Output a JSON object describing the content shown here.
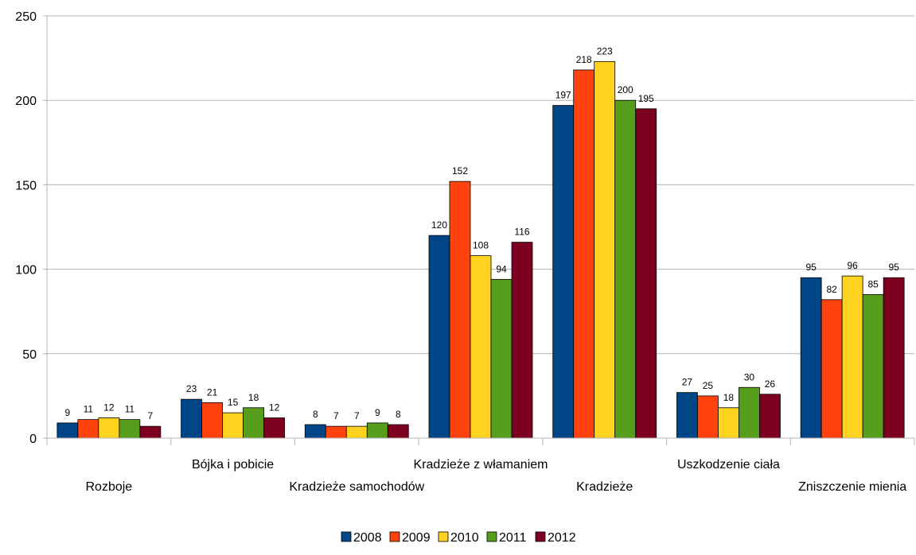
{
  "chart_data": {
    "type": "bar",
    "categories": [
      "Rozboje",
      "Bójka i pobicie",
      "Kradzieże samochodów",
      "Kradzieże z włamaniem",
      "Kradzieże",
      "Uszkodzenie ciała",
      "Zniszczenie mienia"
    ],
    "series": [
      {
        "name": "2008",
        "color": "#004586",
        "values": [
          9,
          23,
          8,
          120,
          197,
          27,
          95
        ]
      },
      {
        "name": "2009",
        "color": "#ff420e",
        "values": [
          11,
          21,
          7,
          152,
          218,
          25,
          82
        ]
      },
      {
        "name": "2010",
        "color": "#ffd320",
        "values": [
          12,
          15,
          7,
          108,
          223,
          18,
          96
        ]
      },
      {
        "name": "2011",
        "color": "#579d1c",
        "values": [
          11,
          18,
          9,
          94,
          200,
          30,
          85
        ]
      },
      {
        "name": "2012",
        "color": "#7e0021",
        "values": [
          7,
          12,
          8,
          116,
          195,
          26,
          95
        ]
      }
    ],
    "ylim": [
      0,
      250
    ],
    "yticks": [
      0,
      50,
      100,
      150,
      200,
      250
    ],
    "grid": true,
    "legend": "bottom",
    "data_labels": true
  }
}
